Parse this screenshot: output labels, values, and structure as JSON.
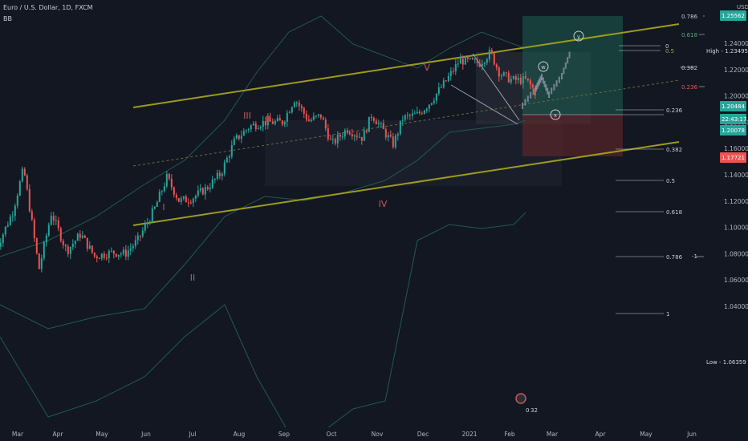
{
  "header": {
    "symbol_line": "Euro / U.S. Dollar, 1D, FXCM",
    "indicator": "BB",
    "currency": "USD"
  },
  "colors": {
    "background": "#131722",
    "up_candle": "#26a69a",
    "down_candle": "#ef5350",
    "channel": "#9c9b1e",
    "bollinger": "#1f5a4f",
    "fib": "#c9ccd6",
    "profit_zone": "#1b5e50",
    "loss_zone": "#6b2828"
  },
  "chart_data": {
    "type": "candlestick",
    "title": "Euro / U.S. Dollar, 1D, FXCM",
    "x_tick_labels": [
      "Mar",
      "Apr",
      "May",
      "Jun",
      "Jul",
      "Aug",
      "Sep",
      "Oct",
      "Nov",
      "Dec",
      "2021",
      "Feb",
      "Mar",
      "Apr",
      "May",
      "Jun"
    ],
    "y_tick_labels": [
      "1.24000",
      "1.22000",
      "1.20000",
      "1.18000",
      "1.16000",
      "1.14000",
      "1.12000",
      "1.10000",
      "1.08000",
      "1.06000",
      "1.04000"
    ],
    "ylim": [
      1.03,
      1.265
    ],
    "close_path": [
      [
        "2020-02-20",
        1.083
      ],
      [
        "2020-03-02",
        1.112
      ],
      [
        "2020-03-09",
        1.145
      ],
      [
        "2020-03-19",
        1.068
      ],
      [
        "2020-03-27",
        1.111
      ],
      [
        "2020-04-06",
        1.082
      ],
      [
        "2020-04-15",
        1.095
      ],
      [
        "2020-04-24",
        1.078
      ],
      [
        "2020-05-06",
        1.081
      ],
      [
        "2020-05-14",
        1.08
      ],
      [
        "2020-05-22",
        1.09
      ],
      [
        "2020-06-02",
        1.114
      ],
      [
        "2020-06-10",
        1.138
      ],
      [
        "2020-06-18",
        1.12
      ],
      [
        "2020-06-26",
        1.122
      ],
      [
        "2020-07-06",
        1.13
      ],
      [
        "2020-07-15",
        1.141
      ],
      [
        "2020-07-24",
        1.166
      ],
      [
        "2020-08-03",
        1.177
      ],
      [
        "2020-08-12",
        1.18
      ],
      [
        "2020-08-24",
        1.18
      ],
      [
        "2020-09-01",
        1.198
      ],
      [
        "2020-09-10",
        1.181
      ],
      [
        "2020-09-18",
        1.185
      ],
      [
        "2020-09-25",
        1.163
      ],
      [
        "2020-10-05",
        1.175
      ],
      [
        "2020-10-15",
        1.168
      ],
      [
        "2020-10-21",
        1.186
      ],
      [
        "2020-11-04",
        1.163
      ],
      [
        "2020-11-10",
        1.183
      ],
      [
        "2020-11-20",
        1.186
      ],
      [
        "2020-11-27",
        1.194
      ],
      [
        "2020-12-08",
        1.211
      ],
      [
        "2020-12-17",
        1.227
      ],
      [
        "2020-12-30",
        1.225
      ],
      [
        "2021-01-06",
        1.233
      ],
      [
        "2021-01-12",
        1.217
      ],
      [
        "2021-01-20",
        1.212
      ],
      [
        "2021-01-29",
        1.212
      ],
      [
        "2021-02-03",
        1.205
      ],
      [
        "2021-02-05",
        1.2007
      ]
    ],
    "price_labels": [
      {
        "text": "High",
        "value": "1.23495"
      },
      {
        "text": "Low",
        "value": "1.06359"
      },
      {
        "value": "1.20484"
      },
      {
        "value": "22:43:17"
      },
      {
        "value": "1.20078"
      },
      {
        "value": "1.17721"
      },
      {
        "value": "1.25562"
      }
    ],
    "fib_upper": [
      "0.786",
      "0.618",
      "0.5",
      "0",
      "0.382",
      "0.236"
    ],
    "fib_lower": [
      "0.236",
      "0.382",
      "0.5",
      "0.618",
      "0.786",
      "1"
    ],
    "fib_extra": "-1",
    "wave_labels": [
      "I",
      "II",
      "III",
      "IV",
      "V"
    ],
    "projection_labels": [
      "w",
      "x",
      "y"
    ],
    "event_badge": "0",
    "event_count": "32"
  }
}
